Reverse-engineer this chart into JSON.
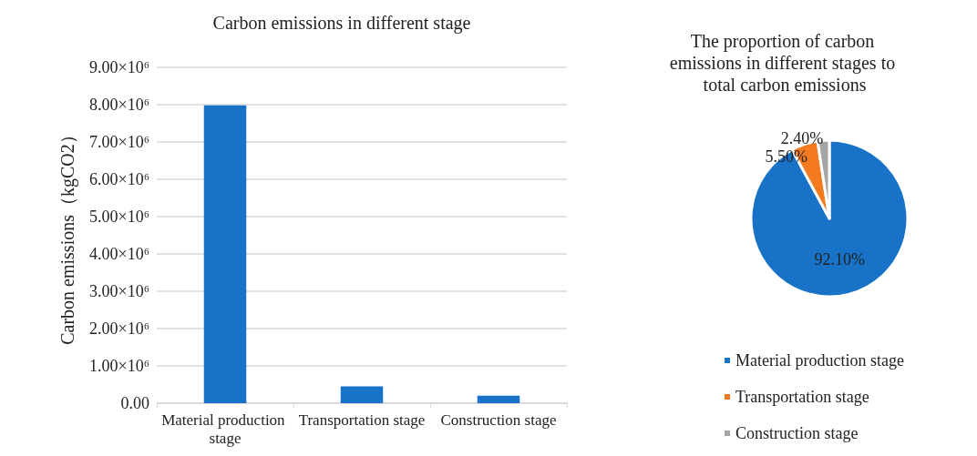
{
  "chart_data": [
    {
      "type": "bar",
      "title": "Carbon emissions in different stage",
      "ylabel": "Carbon emissions（kgCO2）",
      "categories": [
        "Material production stage",
        "Transportation stage",
        "Construction stage"
      ],
      "values": [
        7980000,
        450000,
        200000
      ],
      "color": "#1872c8",
      "ylim": [
        0,
        9000000
      ],
      "yticks": [
        {
          "value": 0,
          "label": "0.00"
        },
        {
          "value": 1000000,
          "label": "1.00×10⁶"
        },
        {
          "value": 2000000,
          "label": "2.00×10⁶"
        },
        {
          "value": 3000000,
          "label": "3.00×10⁶"
        },
        {
          "value": 4000000,
          "label": "4.00×10⁶"
        },
        {
          "value": 5000000,
          "label": "5.00×10⁶"
        },
        {
          "value": 6000000,
          "label": "6.00×10⁶"
        },
        {
          "value": 7000000,
          "label": "7.00×10⁶"
        },
        {
          "value": 8000000,
          "label": "8.00×10⁶"
        },
        {
          "value": 9000000,
          "label": "9.00×10⁶"
        }
      ],
      "grid": "y"
    },
    {
      "type": "pie",
      "title": "The proportion of carbon emissions in different stages to total carbon emissions",
      "categories": [
        "Material production stage",
        "Transportation stage",
        "Construction stage"
      ],
      "values": [
        92.1,
        5.5,
        2.4
      ],
      "colors": [
        "#1872c8",
        "#f47a20",
        "#a5a5a5"
      ],
      "value_labels": [
        "92.10%",
        "5.50%",
        "2.40%"
      ],
      "legend": "bottom"
    }
  ]
}
